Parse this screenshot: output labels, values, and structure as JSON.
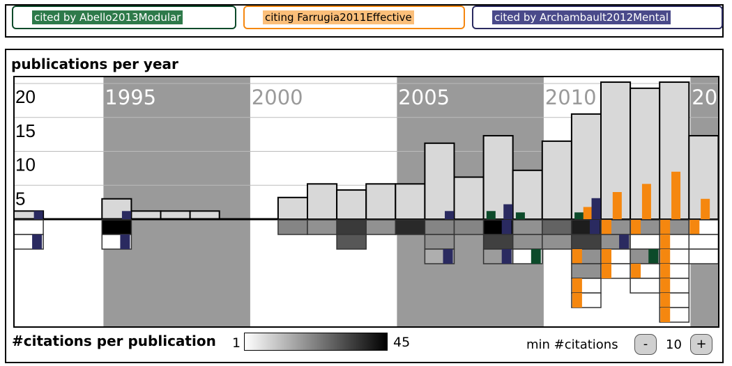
{
  "filters": [
    {
      "label": "cited by Abello2013Modular",
      "color": "#0c4a2a"
    },
    {
      "label": "citing Farrugia2011Effective",
      "color": "#f5870f"
    },
    {
      "label": "cited by Archambault2012Mental",
      "color": "#2a2a60"
    }
  ],
  "icons": {
    "export": "export-icon",
    "edit": "pencil-icon",
    "lock": "lock-icon",
    "close": "close-icon"
  },
  "panel_title": "publications per year",
  "legend": {
    "label": "#citations per publication",
    "min": "1",
    "max": "45"
  },
  "min_citations": {
    "label": "min #citations",
    "value": "10",
    "minus": "-",
    "plus": "+"
  },
  "chart_data": {
    "type": "bar",
    "title": "publications per year",
    "x_start": 1992,
    "x_end": 2014,
    "ylim": [
      0,
      22
    ],
    "y_ticks": [
      "5",
      "10",
      "15",
      "20"
    ],
    "decade_labels": [
      "1995",
      "2000",
      "2005",
      "2010",
      "20"
    ],
    "publications_per_year": [
      {
        "year": 1992,
        "count": 1.2
      },
      {
        "year": 1993,
        "count": 0
      },
      {
        "year": 1994,
        "count": 0
      },
      {
        "year": 1995,
        "count": 3
      },
      {
        "year": 1996,
        "count": 1.2
      },
      {
        "year": 1997,
        "count": 1.2
      },
      {
        "year": 1998,
        "count": 1.2
      },
      {
        "year": 1999,
        "count": 0
      },
      {
        "year": 2001,
        "count": 3.2
      },
      {
        "year": 2002,
        "count": 5.2
      },
      {
        "year": 2003,
        "count": 4.3
      },
      {
        "year": 2004,
        "count": 5.2
      },
      {
        "year": 2005,
        "count": 5.2
      },
      {
        "year": 2006,
        "count": 11.2
      },
      {
        "year": 2007,
        "count": 6.2
      },
      {
        "year": 2008,
        "count": 12.3
      },
      {
        "year": 2009,
        "count": 7.2
      },
      {
        "year": 2010,
        "count": 11.5
      },
      {
        "year": 2011,
        "count": 15.5
      },
      {
        "year": 2012,
        "count": 20.2
      },
      {
        "year": 2013,
        "count": 19.3
      },
      {
        "year": 2014,
        "count": 20.2
      },
      {
        "year": 2015,
        "count": 12.3
      }
    ],
    "series": [
      {
        "name": "cited by Abello2013Modular",
        "color": "#0c4a2a",
        "points": [
          {
            "year": 2008,
            "value": 1.2
          },
          {
            "year": 2009,
            "value": 1.0
          },
          {
            "year": 2011,
            "value": 1.0
          }
        ]
      },
      {
        "name": "citing Farrugia2011Effective",
        "color": "#f5870f",
        "points": [
          {
            "year": 2011,
            "value": 1.8
          },
          {
            "year": 2012,
            "value": 4.0
          },
          {
            "year": 2013,
            "value": 5.2
          },
          {
            "year": 2014,
            "value": 7.0
          },
          {
            "year": 2015,
            "value": 3.0
          }
        ]
      },
      {
        "name": "cited by Archambault2012Mental",
        "color": "#2a2a60",
        "points": [
          {
            "year": 1992,
            "value": 1.2
          },
          {
            "year": 1995,
            "value": 1.2
          },
          {
            "year": 2006,
            "value": 1.2
          },
          {
            "year": 2008,
            "value": 2.2
          },
          {
            "year": 2011,
            "value": 3.1
          }
        ]
      }
    ],
    "citation_cells": [
      {
        "year": 1992,
        "cells": [
          {
            "shade": 1,
            "mark": ""
          },
          {
            "shade": 0,
            "mark": "#2a2a60"
          }
        ]
      },
      {
        "year": 1995,
        "cells": [
          {
            "shade": 45,
            "mark": ""
          },
          {
            "shade": 0,
            "mark": "#2a2a60"
          }
        ]
      },
      {
        "year": 2001,
        "cells": [
          {
            "shade": 22,
            "mark": ""
          }
        ]
      },
      {
        "year": 2002,
        "cells": [
          {
            "shade": 20,
            "mark": ""
          }
        ]
      },
      {
        "year": 2003,
        "cells": [
          {
            "shade": 35,
            "mark": ""
          },
          {
            "shade": 30,
            "mark": ""
          }
        ]
      },
      {
        "year": 2004,
        "cells": [
          {
            "shade": 20,
            "mark": ""
          }
        ]
      },
      {
        "year": 2005,
        "cells": [
          {
            "shade": 38,
            "mark": ""
          }
        ]
      },
      {
        "year": 2006,
        "cells": [
          {
            "shade": 22,
            "mark": ""
          },
          {
            "shade": 20,
            "mark": ""
          },
          {
            "shade": 15,
            "mark": "#2a2a60"
          }
        ]
      },
      {
        "year": 2007,
        "cells": [
          {
            "shade": 22,
            "mark": ""
          }
        ]
      },
      {
        "year": 2008,
        "cells": [
          {
            "shade": 45,
            "mark": "#2a2a60"
          },
          {
            "shade": 34,
            "mark": ""
          },
          {
            "shade": 18,
            "mark": "#2a2a60"
          }
        ]
      },
      {
        "year": 2009,
        "cells": [
          {
            "shade": 20,
            "mark": ""
          },
          {
            "shade": 20,
            "mark": ""
          },
          {
            "shade": 1,
            "mark": "#0c4a2a"
          }
        ]
      },
      {
        "year": 2010,
        "cells": [
          {
            "shade": 28,
            "mark": ""
          },
          {
            "shade": 20,
            "mark": ""
          }
        ]
      },
      {
        "year": 2011,
        "cells": [
          {
            "shade": 40,
            "mark": "#2a2a60"
          },
          {
            "shade": 34,
            "mark": ""
          },
          {
            "shade": 20,
            "mark": "#f5870f"
          },
          {
            "shade": 20,
            "mark": ""
          },
          {
            "shade": 1,
            "mark": "#f5870f"
          },
          {
            "shade": 1,
            "mark": "#f5870f"
          }
        ]
      },
      {
        "year": 2012,
        "cells": [
          {
            "shade": 20,
            "mark": "#f5870f"
          },
          {
            "shade": 20,
            "mark": "#2a2a60"
          },
          {
            "shade": 1,
            "mark": "#f5870f"
          },
          {
            "shade": 1,
            "mark": "#f5870f"
          }
        ]
      },
      {
        "year": 2013,
        "cells": [
          {
            "shade": 20,
            "mark": "#f5870f"
          },
          {
            "shade": 1,
            "mark": ""
          },
          {
            "shade": 20,
            "mark": "#0c4a2a"
          },
          {
            "shade": 1,
            "mark": "#f5870f"
          },
          {
            "shade": 1,
            "mark": ""
          }
        ]
      },
      {
        "year": 2014,
        "cells": [
          {
            "shade": 20,
            "mark": "#f5870f"
          },
          {
            "shade": 1,
            "mark": "#f5870f"
          },
          {
            "shade": 1,
            "mark": "#f5870f"
          },
          {
            "shade": 1,
            "mark": "#f5870f"
          },
          {
            "shade": 1,
            "mark": "#f5870f"
          },
          {
            "shade": 1,
            "mark": "#f5870f"
          },
          {
            "shade": 1,
            "mark": "#f5870f"
          }
        ]
      },
      {
        "year": 2015,
        "cells": [
          {
            "shade": 1,
            "mark": "#f5870f"
          },
          {
            "shade": 1,
            "mark": ""
          },
          {
            "shade": 1,
            "mark": ""
          }
        ]
      }
    ]
  }
}
